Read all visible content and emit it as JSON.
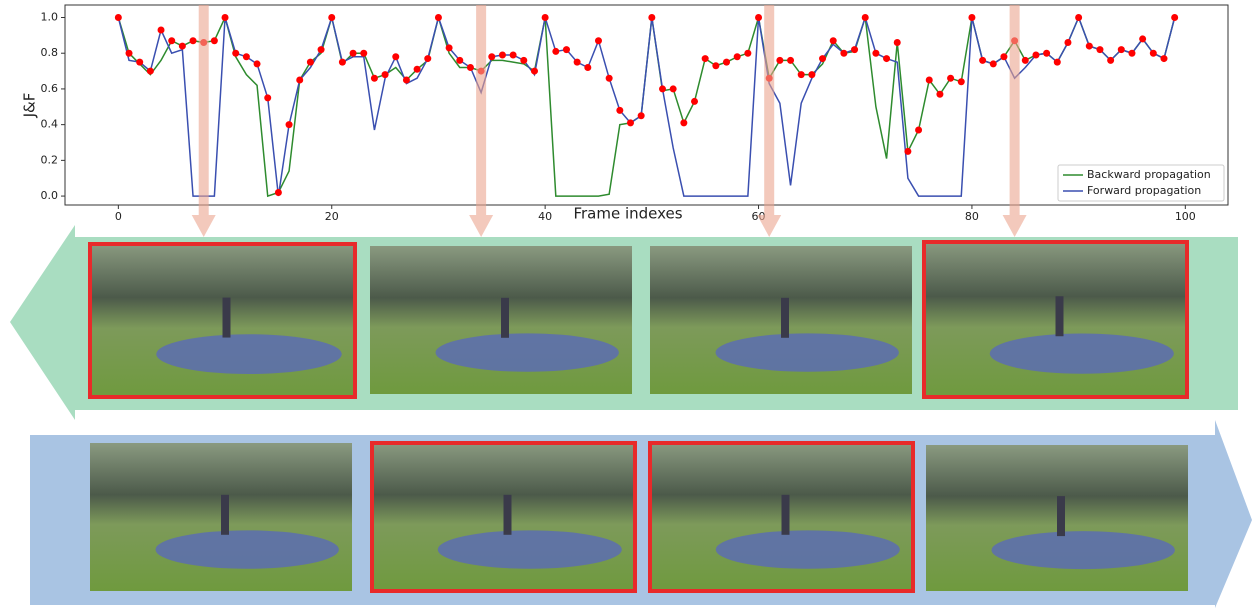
{
  "chart_data": {
    "type": "line",
    "xlabel": "Frame indexes",
    "ylabel": "J&F",
    "x": [
      0,
      1,
      2,
      3,
      4,
      5,
      6,
      7,
      8,
      9,
      10,
      11,
      12,
      13,
      14,
      15,
      16,
      17,
      18,
      19,
      20,
      21,
      22,
      23,
      24,
      25,
      26,
      27,
      28,
      29,
      30,
      31,
      32,
      33,
      34,
      35,
      36,
      37,
      38,
      39,
      40,
      41,
      42,
      43,
      44,
      45,
      46,
      47,
      48,
      49,
      50,
      51,
      52,
      53,
      54,
      55,
      56,
      57,
      58,
      59,
      60,
      61,
      62,
      63,
      64,
      65,
      66,
      67,
      68,
      69,
      70,
      71,
      72,
      73,
      74,
      75,
      76,
      77,
      78,
      79,
      80,
      81,
      82,
      83,
      84,
      85,
      86,
      87,
      88,
      89,
      90,
      91,
      92,
      93,
      94,
      95,
      96,
      97,
      98,
      99
    ],
    "series": [
      {
        "name": "Backward propagation",
        "color": "#2e8b2e",
        "values": [
          1.0,
          0.8,
          0.74,
          0.68,
          0.76,
          0.87,
          0.84,
          0.87,
          0.86,
          0.87,
          1.0,
          0.78,
          0.68,
          0.62,
          0.0,
          0.02,
          0.14,
          0.65,
          0.75,
          0.8,
          1.0,
          0.74,
          0.8,
          0.8,
          0.66,
          0.68,
          0.72,
          0.65,
          0.71,
          0.76,
          1.0,
          0.8,
          0.72,
          0.72,
          0.7,
          0.76,
          0.76,
          0.75,
          0.74,
          0.7,
          1.0,
          0.0,
          0.0,
          0.0,
          0.0,
          0.0,
          0.01,
          0.4,
          0.41,
          0.45,
          1.0,
          0.59,
          0.6,
          0.41,
          0.53,
          0.77,
          0.73,
          0.75,
          0.78,
          0.8,
          1.0,
          0.66,
          0.76,
          0.76,
          0.68,
          0.68,
          0.74,
          0.87,
          0.8,
          0.81,
          1.0,
          0.5,
          0.21,
          0.86,
          0.25,
          0.37,
          0.65,
          0.57,
          0.66,
          0.64,
          1.0,
          0.76,
          0.74,
          0.78,
          0.87,
          0.76,
          0.79,
          0.8,
          0.75,
          0.86,
          1.0,
          0.84,
          0.82,
          0.76,
          0.82,
          0.8,
          0.88,
          0.8,
          0.77,
          1.0
        ]
      },
      {
        "name": "Forward propagation",
        "color": "#3a4fb0",
        "values": [
          1.0,
          0.76,
          0.75,
          0.7,
          0.93,
          0.8,
          0.82,
          0.0,
          0.0,
          0.0,
          1.0,
          0.8,
          0.78,
          0.74,
          0.55,
          0.0,
          0.4,
          0.65,
          0.72,
          0.82,
          1.0,
          0.75,
          0.78,
          0.78,
          0.37,
          0.66,
          0.78,
          0.63,
          0.66,
          0.77,
          1.0,
          0.83,
          0.76,
          0.72,
          0.58,
          0.78,
          0.79,
          0.79,
          0.76,
          0.68,
          1.0,
          0.81,
          0.82,
          0.75,
          0.72,
          0.87,
          0.66,
          0.48,
          0.41,
          0.45,
          1.0,
          0.6,
          0.27,
          0.0,
          0.0,
          0.0,
          0.0,
          0.0,
          0.0,
          0.0,
          1.0,
          0.63,
          0.52,
          0.06,
          0.52,
          0.66,
          0.77,
          0.85,
          0.8,
          0.82,
          1.0,
          0.8,
          0.77,
          0.75,
          0.1,
          0.0,
          0.0,
          0.0,
          0.0,
          0.0,
          1.0,
          0.76,
          0.74,
          0.78,
          0.66,
          0.72,
          0.79,
          0.8,
          0.75,
          0.86,
          1.0,
          0.84,
          0.82,
          0.76,
          0.82,
          0.8,
          0.88,
          0.8,
          0.77,
          1.0
        ]
      }
    ],
    "marker_color": "#ff0000",
    "xlim": [
      -5,
      104
    ],
    "xticks": [
      0,
      20,
      40,
      60,
      80,
      100
    ],
    "ylim": [
      -0.05,
      1.07
    ],
    "yticks": [
      {
        "value": 0,
        "label": "0.0"
      },
      {
        "value": 0.2,
        "label": "0.2"
      },
      {
        "value": 0.4,
        "label": "0.4"
      },
      {
        "value": 0.6,
        "label": "0.6"
      },
      {
        "value": 0.8,
        "label": "0.8"
      },
      {
        "value": 1,
        "label": "1.0"
      }
    ],
    "legend": "lower right"
  }
}
